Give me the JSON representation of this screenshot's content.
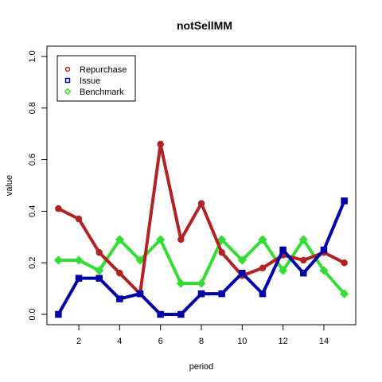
{
  "chart_data": {
    "type": "line",
    "title": "notSellMM",
    "xlabel": "period",
    "ylabel": "value",
    "xlim": [
      0.44,
      15.56
    ],
    "ylim": [
      -0.04,
      1.04
    ],
    "xticks": [
      2,
      4,
      6,
      8,
      10,
      12,
      14
    ],
    "yticks": [
      0.0,
      0.2,
      0.4,
      0.6,
      0.8,
      1.0
    ],
    "ytick_labels": [
      "0.0",
      "0.2",
      "0.4",
      "0.6",
      "0.8",
      "1.0"
    ],
    "grid": false,
    "legend_position": "top-left",
    "x": [
      1,
      2,
      3,
      4,
      5,
      6,
      7,
      8,
      9,
      10,
      11,
      12,
      13,
      14,
      15
    ],
    "series": [
      {
        "name": "Repurchase",
        "color": "#B22222",
        "marker": "circle",
        "values": [
          0.41,
          0.37,
          0.24,
          0.16,
          0.08,
          0.66,
          0.29,
          0.43,
          0.24,
          0.15,
          0.18,
          0.23,
          0.21,
          0.24,
          0.2
        ]
      },
      {
        "name": "Issue",
        "color": "#0000AA",
        "marker": "square",
        "values": [
          0.0,
          0.14,
          0.14,
          0.06,
          0.08,
          0.0,
          0.0,
          0.08,
          0.08,
          0.16,
          0.08,
          0.25,
          0.16,
          0.25,
          0.44
        ]
      },
      {
        "name": "Benchmark",
        "color": "#33DD33",
        "marker": "diamond",
        "values": [
          0.21,
          0.21,
          0.17,
          0.29,
          0.21,
          0.29,
          0.12,
          0.12,
          0.29,
          0.21,
          0.29,
          0.17,
          0.29,
          0.17,
          0.08
        ]
      }
    ]
  }
}
